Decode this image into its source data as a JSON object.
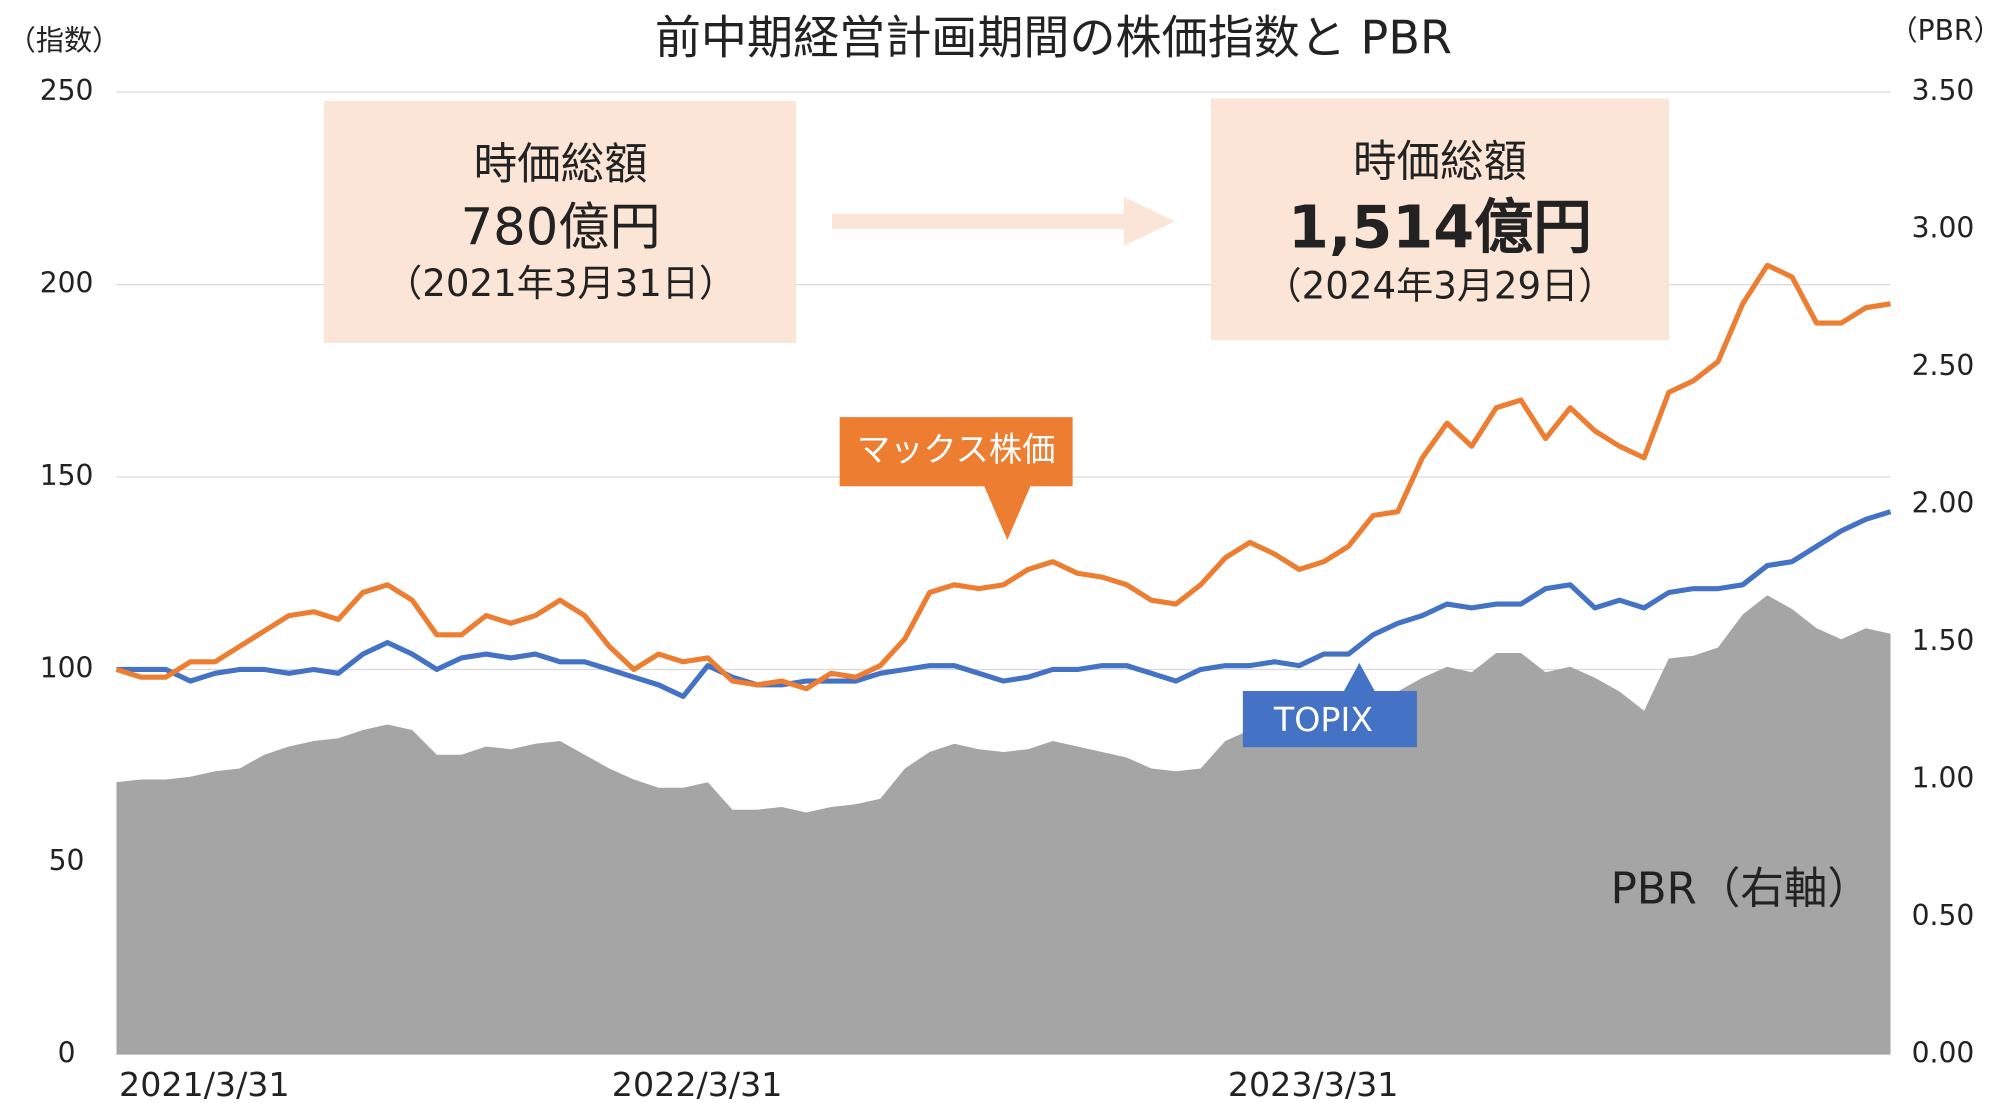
{
  "chart_data": {
    "type": "line",
    "title": "前中期経営計画期間の株価指数と PBR",
    "y_label": "（指数）",
    "y2_label": "（PBR）",
    "categories": [
      "2021/3/31",
      null,
      null,
      null,
      null,
      null,
      null,
      null,
      null,
      null,
      null,
      null,
      null,
      null,
      null,
      null,
      null,
      null,
      null,
      null,
      "2022/3/31",
      null,
      null,
      null,
      null,
      null,
      null,
      null,
      null,
      null,
      null,
      null,
      null,
      null,
      null,
      null,
      null,
      null,
      null,
      null,
      null,
      null,
      null,
      null,
      null,
      "2023/3/31",
      null,
      null,
      null,
      null,
      null,
      null,
      null,
      null,
      null,
      null,
      null,
      null,
      null,
      null,
      null,
      null,
      null,
      null,
      null,
      null,
      null,
      null,
      null,
      null,
      null,
      null,
      null
    ],
    "series": [
      {
        "name": "PBR（右軸）",
        "type": "area",
        "axis": "y2",
        "color": "#a5a5a5",
        "values": [
          0.99,
          1.0,
          1.0,
          1.01,
          1.03,
          1.04,
          1.09,
          1.12,
          1.14,
          1.15,
          1.18,
          1.2,
          1.18,
          1.09,
          1.09,
          1.12,
          1.11,
          1.13,
          1.14,
          1.09,
          1.04,
          1.0,
          0.97,
          0.97,
          0.99,
          0.89,
          0.89,
          0.9,
          0.88,
          0.9,
          0.91,
          0.93,
          1.04,
          1.1,
          1.13,
          1.11,
          1.1,
          1.11,
          1.14,
          1.12,
          1.1,
          1.08,
          1.04,
          1.03,
          1.04,
          1.14,
          1.18,
          1.16,
          1.14,
          1.14,
          1.2,
          1.27,
          1.32,
          1.37,
          1.41,
          1.39,
          1.46,
          1.46,
          1.39,
          1.41,
          1.37,
          1.32,
          1.25,
          1.44,
          1.45,
          1.48,
          1.6,
          1.67,
          1.62,
          1.55,
          1.51,
          1.55,
          1.53
        ]
      },
      {
        "name": "TOPIX",
        "type": "line",
        "color": "#4472c4",
        "values": [
          100,
          100,
          100,
          97,
          99,
          100,
          100,
          99,
          100,
          99,
          104,
          107,
          104,
          100,
          103,
          104,
          103,
          104,
          102,
          102,
          100,
          98,
          96,
          93,
          101,
          98,
          96,
          96,
          97,
          97,
          97,
          99,
          100,
          101,
          101,
          99,
          97,
          98,
          100,
          100,
          101,
          101,
          99,
          97,
          100,
          101,
          101,
          102,
          101,
          104,
          104,
          109,
          112,
          114,
          117,
          116,
          117,
          117,
          121,
          122,
          116,
          118,
          116,
          120,
          121,
          121,
          122,
          127,
          128,
          132,
          136,
          139,
          141
        ]
      },
      {
        "name": "マックス株価",
        "type": "line",
        "color": "#ed7d31",
        "values": [
          100,
          98,
          98,
          102,
          102,
          106,
          110,
          114,
          115,
          113,
          120,
          122,
          118,
          109,
          109,
          114,
          112,
          114,
          118,
          114,
          106,
          100,
          104,
          102,
          103,
          97,
          96,
          97,
          95,
          99,
          98,
          101,
          108,
          120,
          122,
          121,
          122,
          126,
          128,
          125,
          124,
          122,
          118,
          117,
          122,
          129,
          133,
          130,
          126,
          128,
          132,
          140,
          141,
          155,
          164,
          158,
          168,
          170,
          160,
          168,
          162,
          158,
          155,
          172,
          175,
          180,
          195,
          205,
          202,
          190,
          190,
          194,
          195
        ]
      }
    ],
    "ylim": [
      0,
      250
    ],
    "yticks": [
      0,
      50,
      100,
      150,
      200,
      250
    ],
    "y2lim": [
      0,
      3.5
    ],
    "y2ticks": [
      {
        "value": 0,
        "label": "0.00"
      },
      {
        "value": 0.5,
        "label": "0.50"
      },
      {
        "value": 1,
        "label": "1.00"
      },
      {
        "value": 1.5,
        "label": "1.50"
      },
      {
        "value": 2,
        "label": "2.00"
      },
      {
        "value": 2.5,
        "label": "2.50"
      },
      {
        "value": 3,
        "label": "3.00"
      },
      {
        "value": 3.5,
        "label": "3.50"
      }
    ],
    "grid": true,
    "annotations": [
      {
        "title": "時価総額",
        "value": "780億円",
        "date": "（2021年3月31日）"
      },
      {
        "title": "時価総額",
        "value": "1,514億円",
        "date": "（2024年3月29日）"
      }
    ]
  }
}
